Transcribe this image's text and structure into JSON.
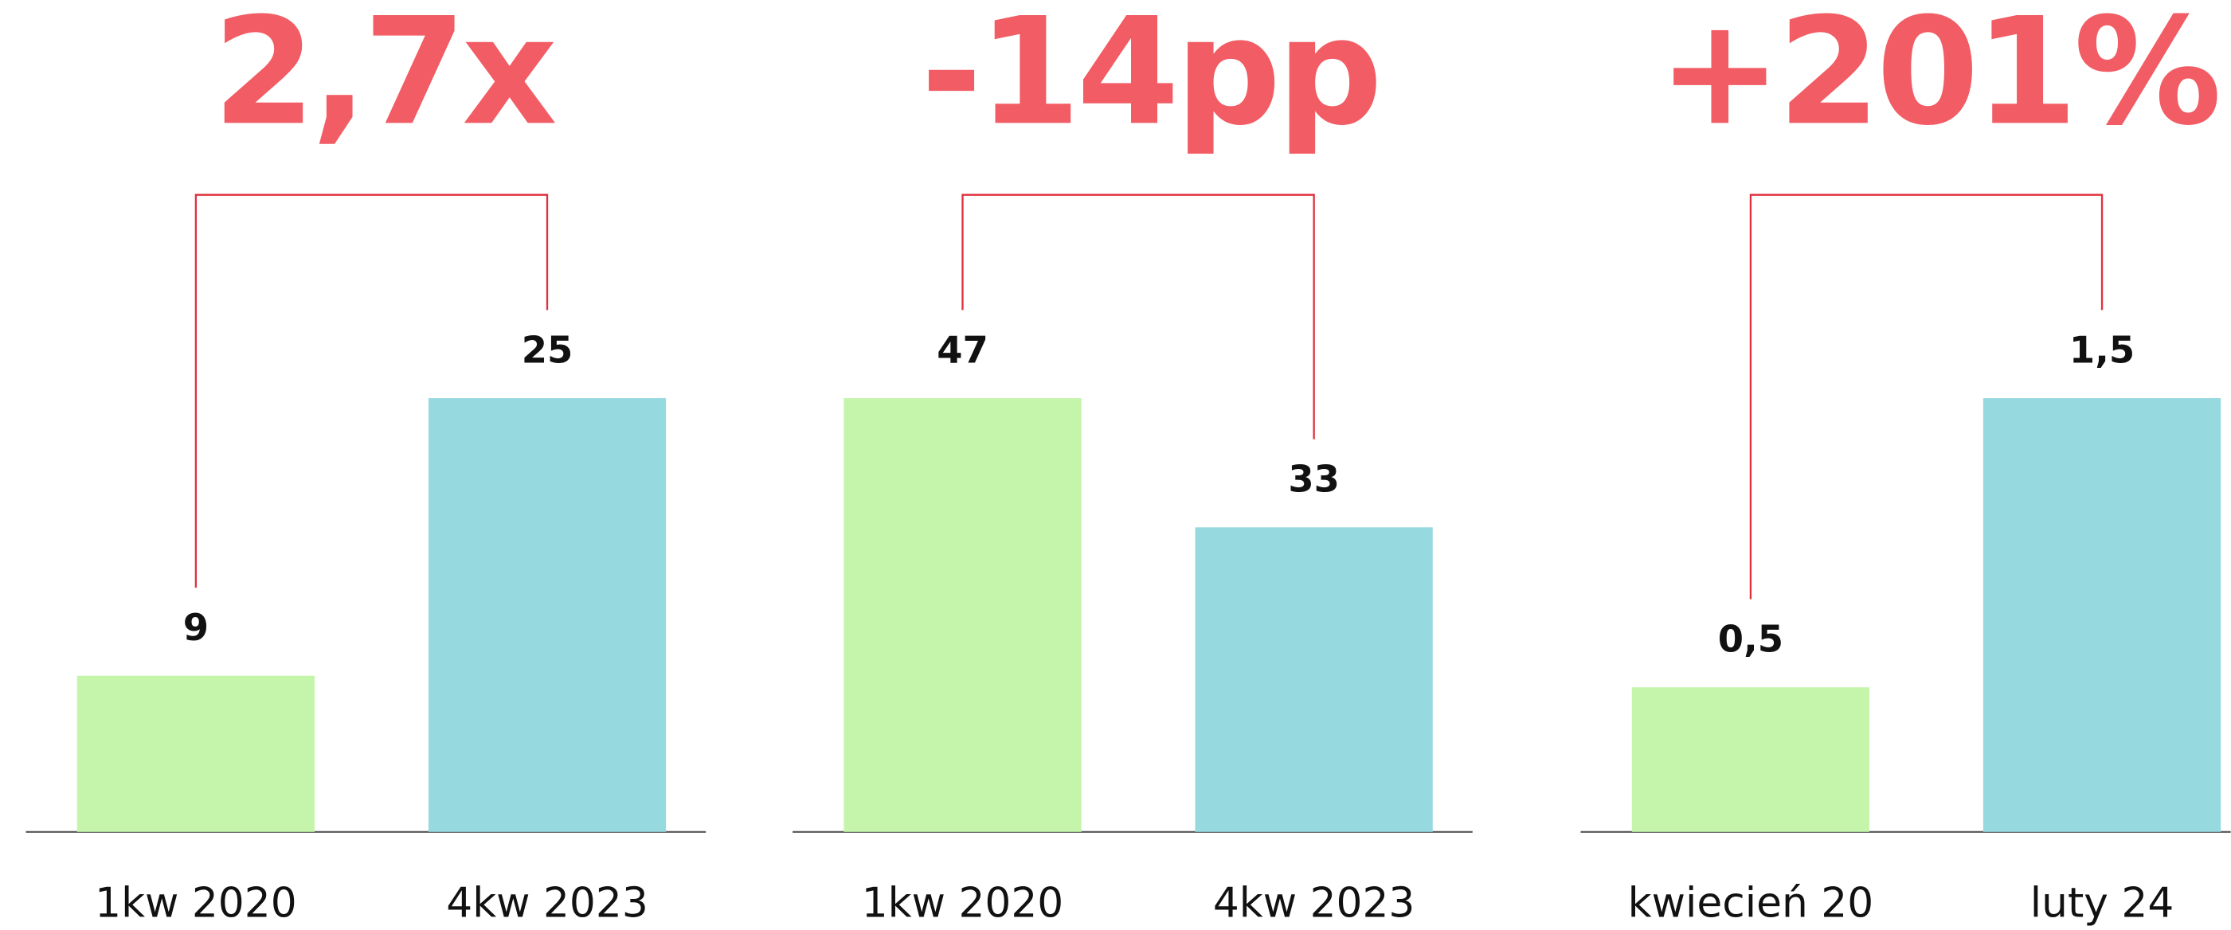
{
  "chart_data": [
    {
      "type": "bar",
      "title": "2,7x",
      "categories": [
        "1kw 2020",
        "4kw 2023"
      ],
      "values": [
        9,
        25
      ],
      "value_labels": [
        "9",
        "25"
      ],
      "colors": [
        "#c4f5ab",
        "#96dae0"
      ]
    },
    {
      "type": "bar",
      "title": "-14pp",
      "categories": [
        "1kw 2020",
        "4kw 2023"
      ],
      "values": [
        47,
        33
      ],
      "value_labels": [
        "47",
        "33"
      ],
      "colors": [
        "#c4f5ab",
        "#96dae0"
      ]
    },
    {
      "type": "bar",
      "title": "+201%",
      "categories": [
        "kwiecień 20",
        "luty 24"
      ],
      "values": [
        0.5,
        1.5
      ],
      "value_labels": [
        "0,5",
        "1,5"
      ],
      "colors": [
        "#c4f5ab",
        "#96dae0"
      ]
    }
  ]
}
